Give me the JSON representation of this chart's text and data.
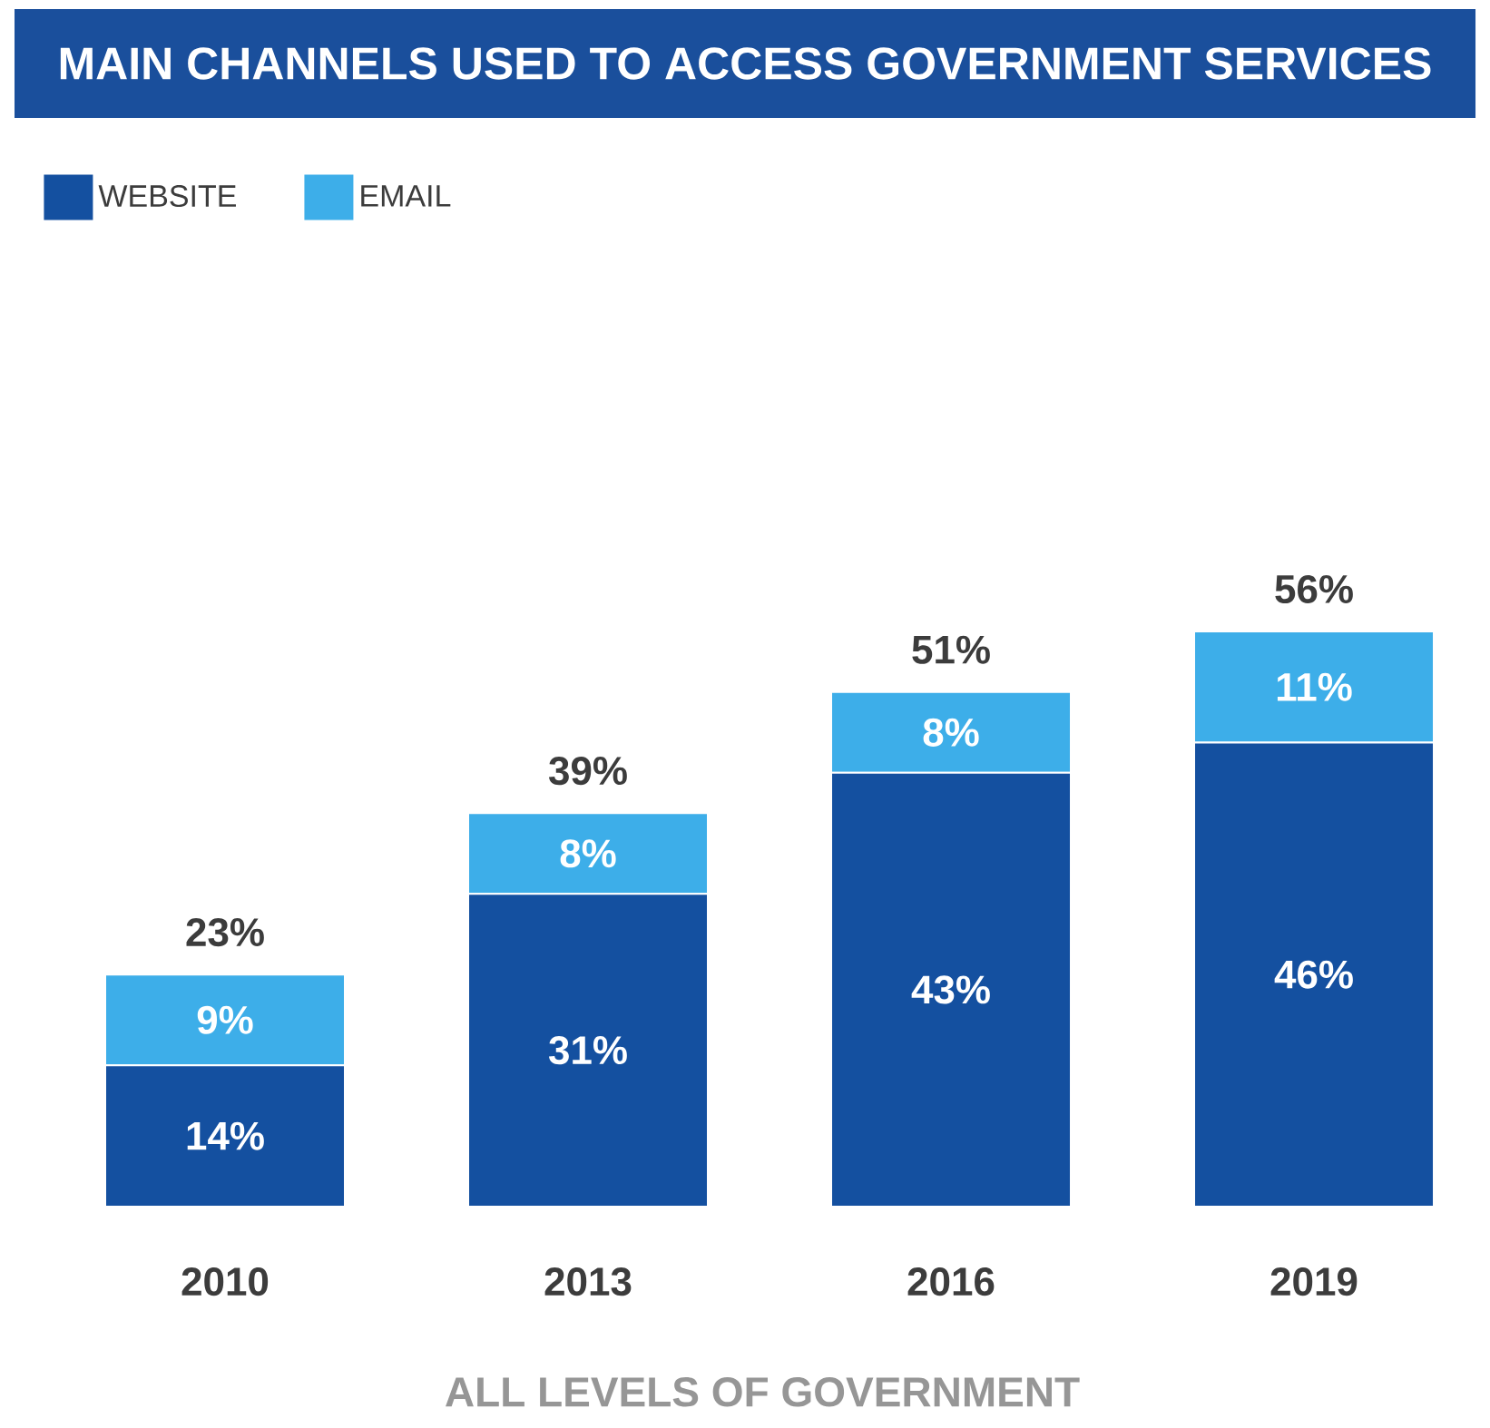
{
  "chart_data": {
    "type": "bar",
    "title": "MAIN CHANNELS USED TO ACCESS GOVERNMENT SERVICES",
    "xlabel": "ALL LEVELS OF GOVERNMENT",
    "categories": [
      "2010",
      "2013",
      "2016",
      "2019"
    ],
    "stacked": true,
    "legend": "top left",
    "series": [
      {
        "name": "WEBSITE",
        "color": "#1450a0",
        "values": [
          14,
          31,
          43,
          46
        ],
        "value_labels": [
          "14%",
          "31%",
          "43%",
          "46%"
        ]
      },
      {
        "name": "EMAIL",
        "color": "#3daee9",
        "values": [
          9,
          8,
          8,
          11
        ],
        "value_labels": [
          "9%",
          "8%",
          "8%",
          "11%"
        ]
      }
    ],
    "totals": [
      "23%",
      "39%",
      "51%",
      "56%"
    ]
  }
}
